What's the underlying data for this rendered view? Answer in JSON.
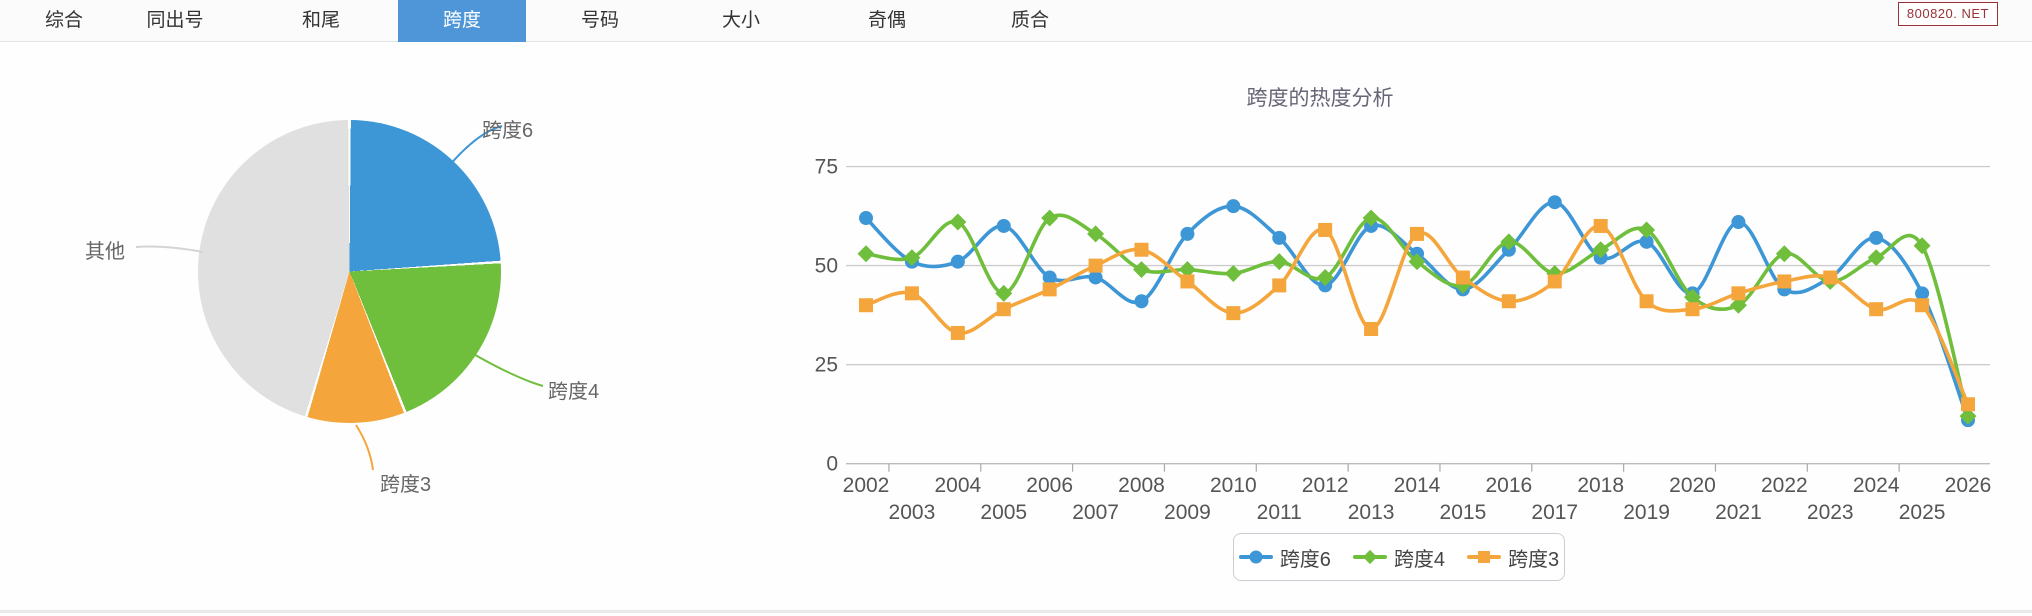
{
  "tabbar": {
    "tabs": [
      "综合",
      "同出号",
      "和尾",
      "跨度",
      "号码",
      "大小",
      "奇偶",
      "质合"
    ],
    "active": "跨度",
    "active_index": 3,
    "active_color": "#4e96d8"
  },
  "watermark": {
    "text": "800820. NET",
    "color": "#9a3137"
  },
  "colors": {
    "blue": "#3d96d5",
    "green": "#6fbe3c",
    "orange": "#f4a63c",
    "gray": "#e0e0e0",
    "grid": "#cccccc",
    "axis_text": "#555555"
  },
  "chart_data": [
    {
      "type": "pie",
      "labels": [
        "跨度6",
        "跨度4",
        "跨度3",
        "其他"
      ],
      "values": [
        24,
        20,
        10.6,
        45.4
      ],
      "unit": "percent",
      "colors": [
        "#3d96d5",
        "#6fbe3c",
        "#f4a63c",
        "#e0e0e0"
      ],
      "start_angle_deg": 0,
      "clockwise": true
    },
    {
      "type": "line",
      "title": "跨度的热度分析",
      "x": [
        2002,
        2003,
        2004,
        2005,
        2006,
        2007,
        2008,
        2009,
        2010,
        2011,
        2012,
        2013,
        2014,
        2015,
        2016,
        2017,
        2018,
        2019,
        2020,
        2021,
        2022,
        2023,
        2024,
        2025,
        2026
      ],
      "series": [
        {
          "name": "跨度6",
          "color": "#3d96d5",
          "marker": "circle",
          "values": [
            62,
            51,
            51,
            60,
            47,
            47,
            41,
            58,
            65,
            57,
            45,
            60,
            53,
            44,
            54,
            66,
            52,
            56,
            43,
            61,
            44,
            47,
            57,
            43,
            11
          ]
        },
        {
          "name": "跨度4",
          "color": "#6fbe3c",
          "marker": "diamond",
          "values": [
            53,
            52,
            61,
            43,
            62,
            58,
            49,
            49,
            48,
            51,
            47,
            62,
            51,
            45,
            56,
            48,
            54,
            59,
            42,
            40,
            53,
            46,
            52,
            55,
            12
          ]
        },
        {
          "name": "跨度3",
          "color": "#f4a63c",
          "marker": "square",
          "values": [
            40,
            43,
            33,
            39,
            44,
            50,
            54,
            46,
            38,
            45,
            59,
            34,
            58,
            47,
            41,
            46,
            60,
            41,
            39,
            43,
            46,
            47,
            39,
            40,
            15
          ]
        }
      ],
      "ylim": [
        0,
        75
      ],
      "y_ticks": [
        0,
        25,
        50,
        75
      ],
      "grid": true,
      "legend_position": "bottom"
    }
  ]
}
